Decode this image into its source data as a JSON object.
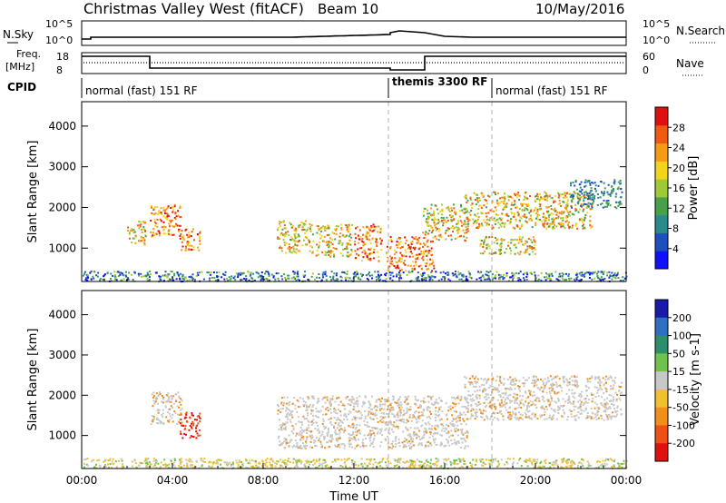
{
  "header": {
    "radar": "Christmas Valley West (fitACF)",
    "beam": "Beam 10",
    "date": "10/May/2016"
  },
  "top_panels": {
    "nsky_label": "N.Sky",
    "nsearch_label": "N.Search",
    "nsky_ticks": [
      "10^5",
      "10^0"
    ],
    "nsearch_ticks": [
      "10^5",
      "10^0"
    ],
    "freq_label": "Freq.",
    "freq_unit": "[MHz]",
    "freq_ticks": [
      "18",
      "8"
    ],
    "nave_label": "Nave",
    "nave_ticks": [
      "60",
      "0"
    ],
    "cpid_label": "CPID",
    "cpid_modes": [
      {
        "name": "normal (fast) 151 RF",
        "start_hour": 0,
        "end_hour": 13.3
      },
      {
        "name": "themis 3300 RF",
        "start_hour": 13.3,
        "end_hour": 17.9
      },
      {
        "name": "normal (fast) 151 RF",
        "start_hour": 17.9,
        "end_hour": 24
      }
    ]
  },
  "chart_data": [
    {
      "type": "heatmap",
      "title": "Power",
      "ylabel": "Slant Range [km]",
      "xlabel": "",
      "xlim": [
        0,
        24
      ],
      "ylim": [
        180,
        4600
      ],
      "yticks": [
        "1000",
        "2000",
        "3000",
        "4000"
      ],
      "colorbar": {
        "label": "Power [dB]",
        "ticks": [
          "4",
          "8",
          "12",
          "16",
          "20",
          "24",
          "28"
        ],
        "colors": [
          "#1010ff",
          "#1f4fbf",
          "#2b8a8a",
          "#47a04a",
          "#9ecb35",
          "#f2d51a",
          "#f59a13",
          "#ef5a10",
          "#e01010"
        ]
      },
      "echo_regions": [
        {
          "x": [
            3.0,
            4.4
          ],
          "y": [
            1300,
            2100
          ],
          "level": "high"
        },
        {
          "x": [
            4.3,
            5.2
          ],
          "y": [
            950,
            1500
          ],
          "level": "high"
        },
        {
          "x": [
            2.0,
            2.8
          ],
          "y": [
            1100,
            1700
          ],
          "level": "medium"
        },
        {
          "x": [
            8.6,
            10.2
          ],
          "y": [
            900,
            1700
          ],
          "level": "medium"
        },
        {
          "x": [
            10.3,
            11.9
          ],
          "y": [
            800,
            1600
          ],
          "level": "medium"
        },
        {
          "x": [
            12.0,
            13.2
          ],
          "y": [
            700,
            1600
          ],
          "level": "high"
        },
        {
          "x": [
            13.4,
            15.5
          ],
          "y": [
            450,
            1300
          ],
          "level": "high"
        },
        {
          "x": [
            15.0,
            17.0
          ],
          "y": [
            1200,
            2100
          ],
          "level": "medium"
        },
        {
          "x": [
            16.8,
            22.5
          ],
          "y": [
            1500,
            2400
          ],
          "level": "medium"
        },
        {
          "x": [
            17.5,
            20.0
          ],
          "y": [
            850,
            1300
          ],
          "level": "medium"
        },
        {
          "x": [
            21.5,
            23.8
          ],
          "y": [
            2000,
            2700
          ],
          "level": "low"
        }
      ]
    },
    {
      "type": "heatmap",
      "title": "Velocity",
      "ylabel": "Slant Range [km]",
      "xlabel": "Time UT",
      "xlim": [
        0,
        24
      ],
      "ylim": [
        180,
        4600
      ],
      "xticks": [
        "00:00",
        "04:00",
        "08:00",
        "12:00",
        "16:00",
        "20:00",
        "00:00"
      ],
      "yticks": [
        "1000",
        "2000",
        "3000",
        "4000"
      ],
      "colorbar": {
        "label": "Velocity [m s-1]",
        "ticks": [
          "200",
          "100",
          "50",
          "15",
          "-15",
          "-50",
          "-100",
          "-200"
        ],
        "colors": [
          "#1a1aa8",
          "#2e6fbf",
          "#2d8f6a",
          "#6fc24a",
          "#c8c8c8",
          "#f0c030",
          "#f0901a",
          "#f05015",
          "#e01010"
        ]
      },
      "echo_regions": [
        {
          "x": [
            4.3,
            5.2
          ],
          "y": [
            950,
            1600
          ],
          "level": "strong-negative"
        },
        {
          "x": [
            3.0,
            4.4
          ],
          "y": [
            1300,
            2100
          ],
          "level": "near-zero"
        },
        {
          "x": [
            8.6,
            17.0
          ],
          "y": [
            700,
            2000
          ],
          "level": "near-zero"
        },
        {
          "x": [
            16.8,
            23.8
          ],
          "y": [
            1400,
            2500
          ],
          "level": "near-zero"
        }
      ]
    }
  ],
  "colors": {
    "axis": "#000000",
    "dashed": "#b0b0b0"
  }
}
